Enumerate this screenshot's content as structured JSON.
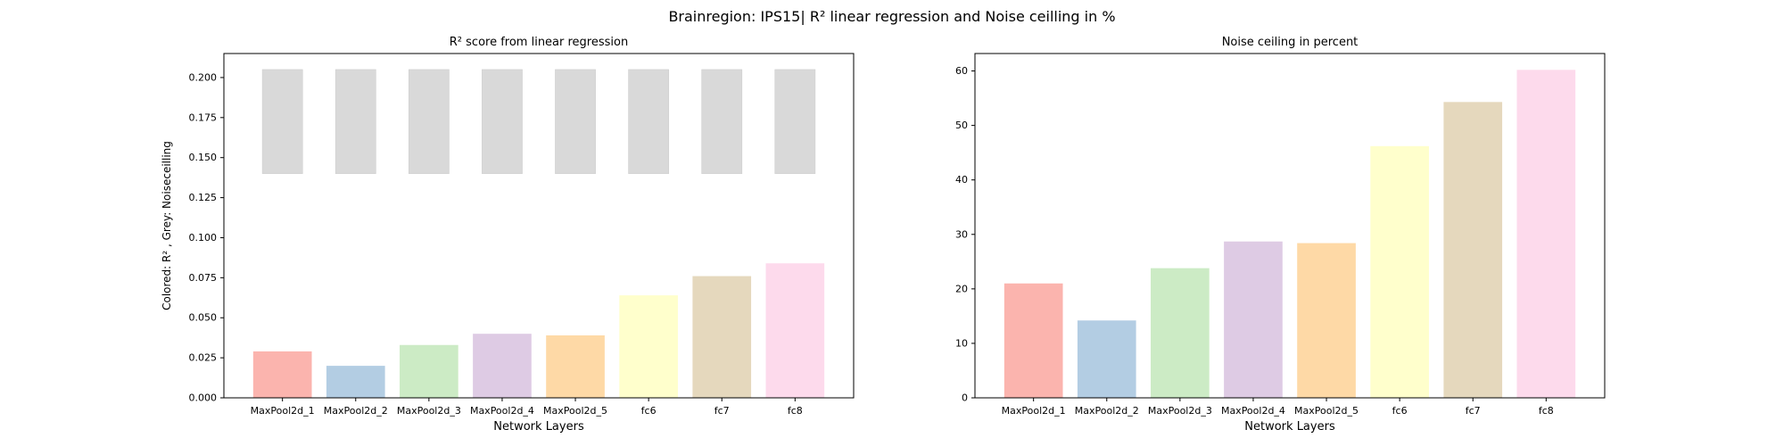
{
  "suptitle": "Brainregion: IPS15| R² linear regression and Noise ceilling in %",
  "chart_data": [
    {
      "type": "bar",
      "title": "R² score from linear regression",
      "xlabel": "Network Layers",
      "ylabel": "Colored: R² , Grey: Noiseceilling",
      "categories": [
        "MaxPool2d_1",
        "MaxPool2d_2",
        "MaxPool2d_3",
        "MaxPool2d_4",
        "MaxPool2d_5",
        "fc6",
        "fc7",
        "fc8"
      ],
      "series": [
        {
          "values": [
            0.029,
            0.02,
            0.033,
            0.04,
            0.039,
            0.064,
            0.076,
            0.084
          ]
        }
      ],
      "noise_ceiling_range": [
        [
          0.14,
          0.205
        ],
        [
          0.14,
          0.205
        ],
        [
          0.14,
          0.205
        ],
        [
          0.14,
          0.205
        ],
        [
          0.14,
          0.205
        ],
        [
          0.14,
          0.205
        ],
        [
          0.14,
          0.205
        ],
        [
          0.14,
          0.205
        ]
      ],
      "ylim": [
        0,
        0.215
      ],
      "yticks": [
        0.0,
        0.025,
        0.05,
        0.075,
        0.1,
        0.125,
        0.15,
        0.175,
        0.2
      ],
      "ytick_labels": [
        "0.000",
        "0.025",
        "0.050",
        "0.075",
        "0.100",
        "0.125",
        "0.150",
        "0.175",
        "0.200"
      ],
      "grid": false
    },
    {
      "type": "bar",
      "title": "Noise ceiling in percent",
      "xlabel": "Network Layers",
      "ylabel": "",
      "categories": [
        "MaxPool2d_1",
        "MaxPool2d_2",
        "MaxPool2d_3",
        "MaxPool2d_4",
        "MaxPool2d_5",
        "fc6",
        "fc7",
        "fc8"
      ],
      "series": [
        {
          "values": [
            21.0,
            14.2,
            23.8,
            28.7,
            28.4,
            46.2,
            54.3,
            60.2
          ]
        }
      ],
      "ylim": [
        0,
        63.2
      ],
      "yticks": [
        0,
        10,
        20,
        30,
        40,
        50,
        60
      ],
      "ytick_labels": [
        "0",
        "10",
        "20",
        "30",
        "40",
        "50",
        "60"
      ],
      "grid": false
    }
  ],
  "colors": {
    "bars": [
      "#fbb4ae",
      "#b3cde3",
      "#ccebc5",
      "#decbe4",
      "#fed9a6",
      "#ffffcc",
      "#e5d8bd",
      "#fddaec"
    ],
    "noise_ceiling": "#d9d9d9",
    "axis": "#000000"
  }
}
